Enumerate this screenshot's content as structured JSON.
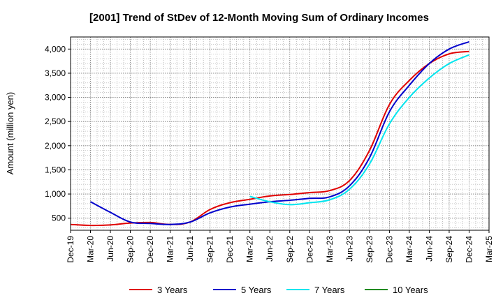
{
  "chart_data": {
    "type": "line",
    "title": "[2001]  Trend of StDev of 12-Month Moving Sum of Ordinary Incomes",
    "xlabel": "",
    "ylabel": "Amount (million yen)",
    "ylim": [
      250,
      4250
    ],
    "yticks": [
      500,
      1000,
      1500,
      2000,
      2500,
      3000,
      3500,
      4000
    ],
    "ytick_labels": [
      "500",
      "1,000",
      "1,500",
      "2,000",
      "2,500",
      "3,000",
      "3,500",
      "4,000"
    ],
    "x_categories": [
      "Dec-19",
      "Mar-20",
      "Jun-20",
      "Sep-20",
      "Dec-20",
      "Mar-21",
      "Jun-21",
      "Sep-21",
      "Dec-21",
      "Mar-22",
      "Jun-22",
      "Sep-22",
      "Dec-22",
      "Mar-23",
      "Jun-23",
      "Sep-23",
      "Dec-23",
      "Mar-24",
      "Jun-24",
      "Sep-24",
      "Dec-24",
      "Mar-25"
    ],
    "grid": true,
    "legend_position": "bottom",
    "series": [
      {
        "name": "3 Years",
        "color": "#e00000",
        "x": [
          "Dec-19",
          "Mar-20",
          "Jun-20",
          "Sep-20",
          "Dec-20",
          "Mar-21",
          "Jun-21",
          "Sep-21",
          "Dec-21",
          "Mar-22",
          "Jun-22",
          "Sep-22",
          "Dec-22",
          "Mar-23",
          "Jun-23",
          "Sep-23",
          "Dec-23",
          "Mar-24",
          "Jun-24",
          "Sep-24",
          "Dec-24"
        ],
        "values": [
          370,
          350,
          360,
          400,
          410,
          370,
          420,
          680,
          820,
          890,
          960,
          990,
          1030,
          1070,
          1280,
          1900,
          2850,
          3350,
          3700,
          3900,
          3950
        ]
      },
      {
        "name": "5 Years",
        "color": "#0000cc",
        "x": [
          "Mar-20",
          "Jun-20",
          "Sep-20",
          "Dec-20",
          "Mar-21",
          "Jun-21",
          "Sep-21",
          "Dec-21",
          "Mar-22",
          "Jun-22",
          "Sep-22",
          "Dec-22",
          "Mar-23",
          "Jun-23",
          "Sep-23",
          "Dec-23",
          "Mar-24",
          "Jun-24",
          "Sep-24",
          "Dec-24"
        ],
        "values": [
          840,
          620,
          420,
          390,
          370,
          420,
          610,
          730,
          790,
          840,
          870,
          910,
          940,
          1170,
          1750,
          2700,
          3250,
          3700,
          4000,
          4150
        ]
      },
      {
        "name": "7 Years",
        "color": "#00e5ee",
        "x": [
          "Mar-22",
          "Jun-22",
          "Sep-22",
          "Dec-22",
          "Mar-23",
          "Jun-23",
          "Sep-23",
          "Dec-23",
          "Mar-24",
          "Jun-24",
          "Sep-24",
          "Dec-24"
        ],
        "values": [
          950,
          840,
          780,
          820,
          880,
          1100,
          1620,
          2450,
          3000,
          3400,
          3700,
          3880
        ]
      },
      {
        "name": "10 Years",
        "color": "#228b22",
        "x": [],
        "values": []
      }
    ]
  }
}
